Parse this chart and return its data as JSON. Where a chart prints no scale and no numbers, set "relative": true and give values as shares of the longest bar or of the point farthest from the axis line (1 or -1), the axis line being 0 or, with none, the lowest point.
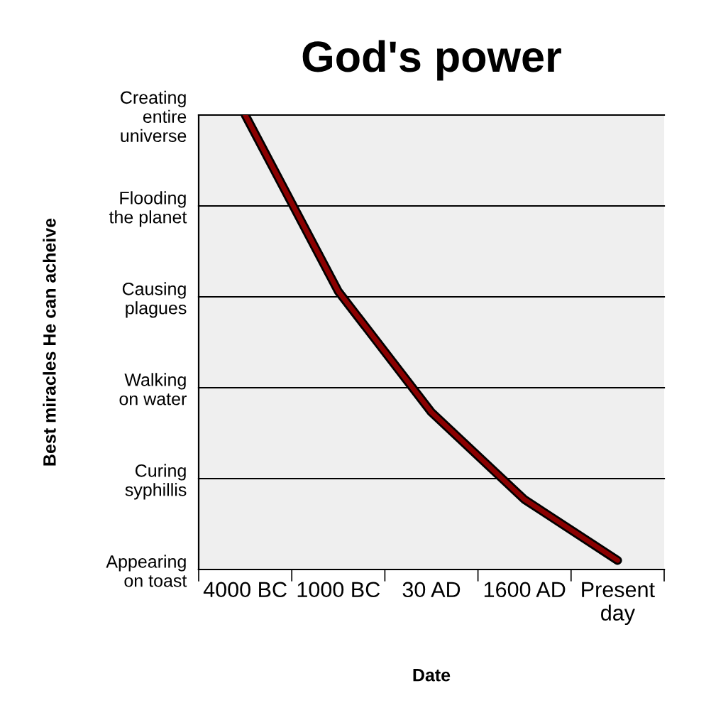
{
  "chart_data": {
    "type": "line",
    "title": "God's power",
    "xlabel": "Date",
    "annotations": [
      "Best miracles He can acheive"
    ],
    "categories": [
      "4000 BC",
      "1000 BC",
      "30 AD",
      "1600 AD",
      "Present\nday"
    ],
    "relative": true,
    "series": [
      {
        "color": "#8b0000",
        "values": [
          1,
          0.612,
          0.346,
          0.154,
          0.02
        ]
      }
    ],
    "ref_lines": [
      {
        "axis": "y",
        "value": 0,
        "label": "Appearing\non toast",
        "color": "#000000"
      },
      {
        "axis": "y",
        "value": 0.2,
        "label": "Curing\nsyphillis",
        "color": "#000000"
      },
      {
        "axis": "y",
        "value": 0.4,
        "label": "Walking\non water",
        "color": "#000000"
      },
      {
        "axis": "y",
        "value": 0.6,
        "label": "Causing\nplagues",
        "color": "#000000"
      },
      {
        "axis": "y",
        "value": 0.8,
        "label": "Flooding\nthe planet",
        "color": "#000000"
      },
      {
        "axis": "y",
        "value": 1,
        "label": "Creating\nentire\nuniverse",
        "color": "#000000"
      }
    ],
    "legend": false,
    "marker": "none",
    "line_style": "solid"
  }
}
